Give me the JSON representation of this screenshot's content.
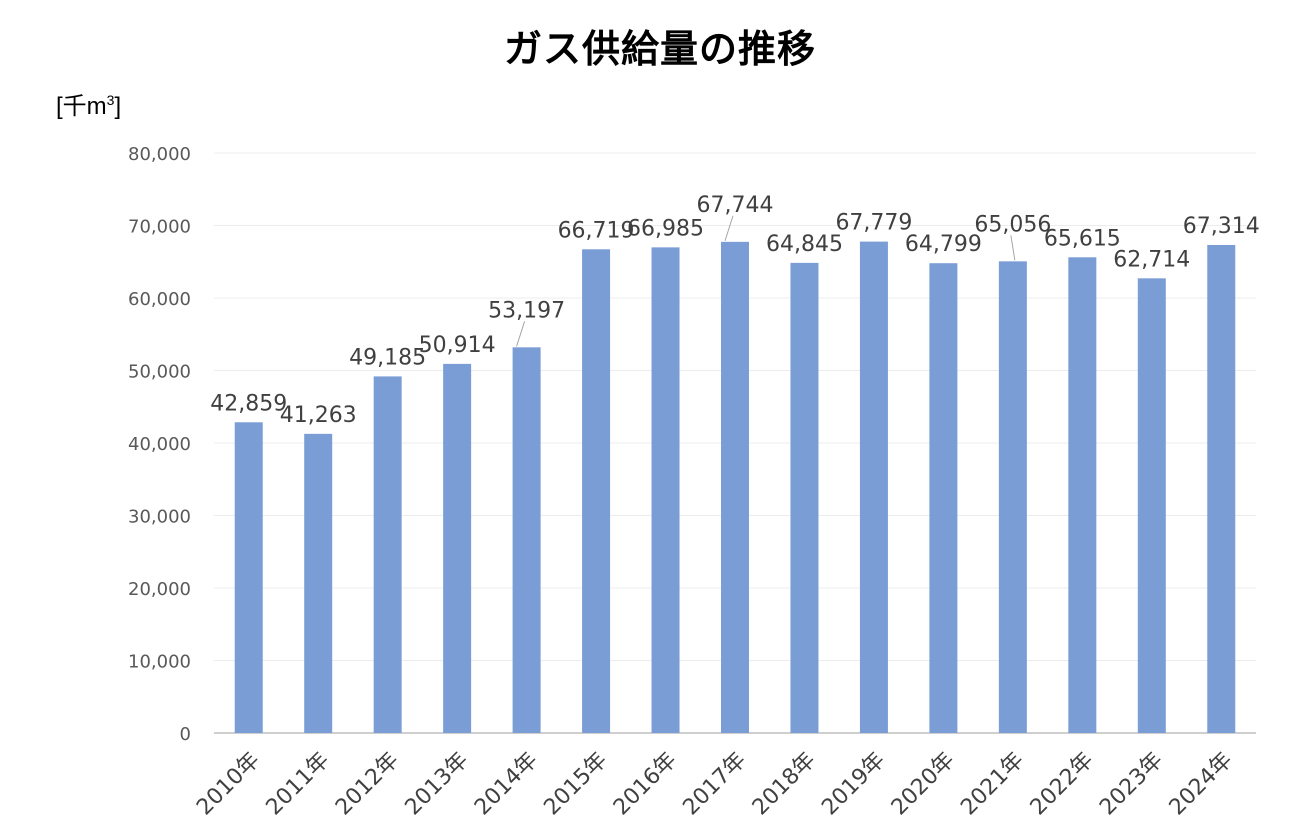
{
  "chart_data": {
    "type": "bar",
    "title": "ガス供給量の推移",
    "unit_label": "[千m³]",
    "xlabel": "",
    "ylabel": "[千m³]",
    "categories": [
      "2010年",
      "2011年",
      "2012年",
      "2013年",
      "2014年",
      "2015年",
      "2016年",
      "2017年",
      "2018年",
      "2019年",
      "2020年",
      "2021年",
      "2022年",
      "2023年",
      "2024年"
    ],
    "values": [
      42859,
      41263,
      49185,
      50914,
      53197,
      66719,
      66985,
      67744,
      64845,
      67779,
      64799,
      65056,
      65615,
      62714,
      67314
    ],
    "value_labels": [
      "42,859",
      "41,263",
      "49,185",
      "50,914",
      "53,197",
      "66,719",
      "66,985",
      "67,744",
      "64,845",
      "67,779",
      "64,799",
      "65,056",
      "65,615",
      "62,714",
      "67,314"
    ],
    "ylim": [
      0,
      80000
    ],
    "yticks": [
      0,
      10000,
      20000,
      30000,
      40000,
      50000,
      60000,
      70000,
      80000
    ],
    "ytick_labels": [
      "0",
      "10,000",
      "20,000",
      "30,000",
      "40,000",
      "50,000",
      "60,000",
      "70,000",
      "80,000"
    ],
    "grid": true,
    "legend": "none",
    "colors": {
      "bar": "#7b9dd6",
      "grid": "#ececec",
      "axis": "#bfbfbf",
      "leader": "#a6a6a6"
    }
  }
}
